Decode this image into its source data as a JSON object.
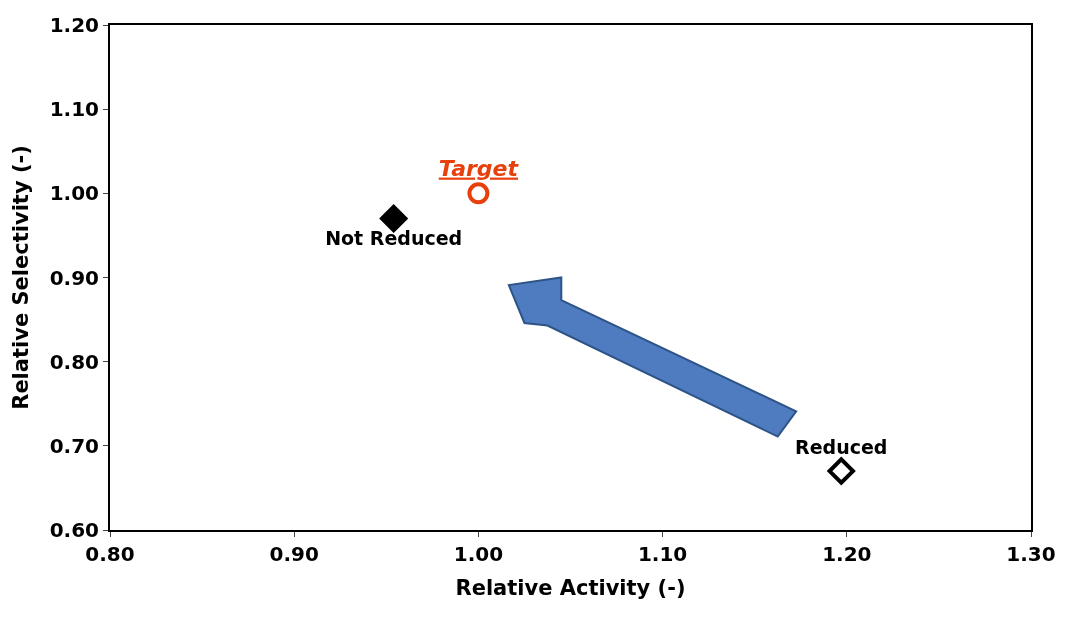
{
  "chart_data": {
    "type": "scatter",
    "xlabel": "Relative Activity (-)",
    "ylabel": "Relative Selectivity (-)",
    "xlim": [
      0.8,
      1.3
    ],
    "xticks": [
      {
        "value": 0.8,
        "label": "0.80"
      },
      {
        "value": 0.9,
        "label": "0.90"
      },
      {
        "value": 1.0,
        "label": "1.00"
      },
      {
        "value": 1.1,
        "label": "1.10"
      },
      {
        "value": 1.2,
        "label": "1.20"
      },
      {
        "value": 1.3,
        "label": "1.30"
      }
    ],
    "ylim": [
      0.6,
      1.2
    ],
    "yticks": [
      {
        "value": 0.6,
        "label": "0.60"
      },
      {
        "value": 0.7,
        "label": "0.70"
      },
      {
        "value": 0.8,
        "label": "0.80"
      },
      {
        "value": 0.9,
        "label": "0.90"
      },
      {
        "value": 1.0,
        "label": "1.00"
      },
      {
        "value": 1.1,
        "label": "1.10"
      },
      {
        "value": 1.2,
        "label": "1.20"
      }
    ],
    "legend": false,
    "series": [
      {
        "name": "Not Reduced",
        "color": "#000000",
        "marker": "diamond",
        "x": [
          0.954
        ],
        "values": [
          0.97
        ]
      },
      {
        "name": "Target",
        "color": "#e8400c",
        "marker": "circle",
        "x": [
          1.0
        ],
        "values": [
          1.0
        ]
      },
      {
        "name": "Reduced",
        "color": "#000000",
        "marker": "diamond",
        "x": [
          1.197
        ],
        "values": [
          0.67
        ]
      }
    ]
  }
}
